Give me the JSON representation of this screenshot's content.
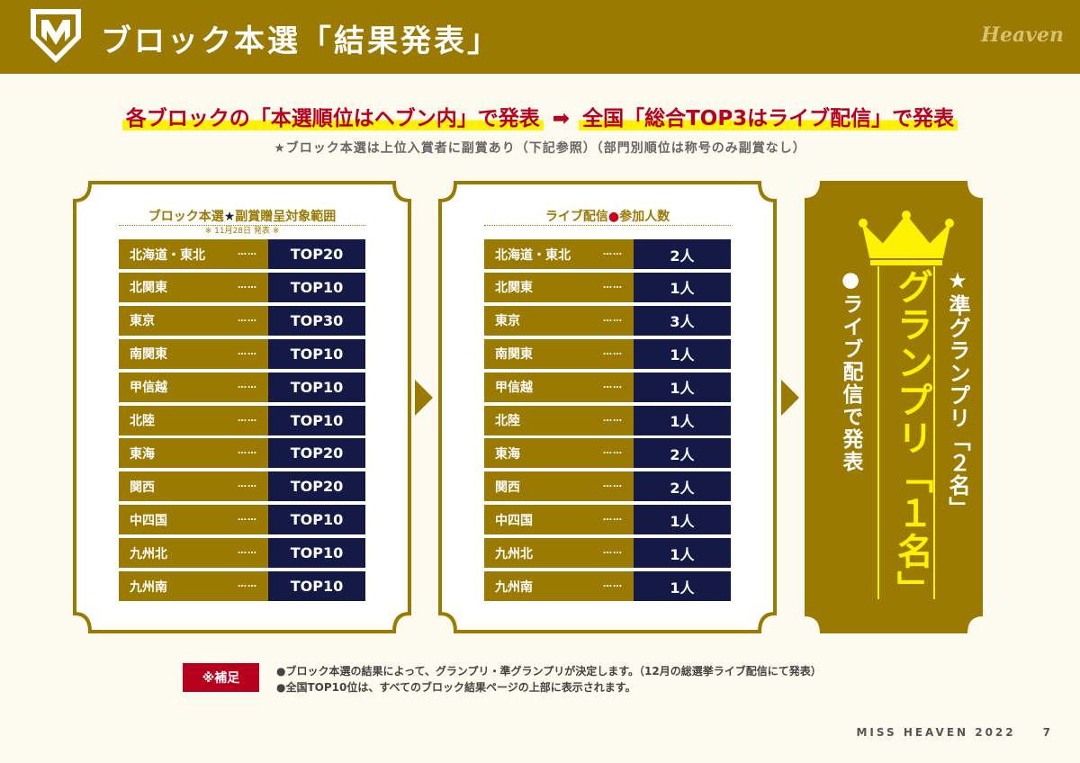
{
  "header": {
    "title": "ブロック本選「結果発表」",
    "brand": "Heaven",
    "logo_icon": "shield-m-logo",
    "bg_color": "#9a7a00"
  },
  "headline": {
    "part1": "各ブロックの「本選順位はヘブン内」で発表",
    "arrow": "➡",
    "part2": "全国「総合TOP3はライブ配信」で発表",
    "note": "★ブロック本選は上位入賞者に副賞あり（下記参照）（部門別順位は称号のみ副賞なし）"
  },
  "panel1": {
    "title_a": "ブロック本選",
    "title_mark": "★",
    "title_b": "副賞贈呈対象範囲",
    "note": "※ 11月28日 発表 ※",
    "rows": [
      {
        "region": "北海道・東北",
        "value": "TOP20"
      },
      {
        "region": "北関東",
        "value": "TOP10"
      },
      {
        "region": "東京",
        "value": "TOP30"
      },
      {
        "region": "南関東",
        "value": "TOP10"
      },
      {
        "region": "甲信越",
        "value": "TOP10"
      },
      {
        "region": "北陸",
        "value": "TOP10"
      },
      {
        "region": "東海",
        "value": "TOP20"
      },
      {
        "region": "関西",
        "value": "TOP20"
      },
      {
        "region": "中四国",
        "value": "TOP10"
      },
      {
        "region": "九州北",
        "value": "TOP10"
      },
      {
        "region": "九州南",
        "value": "TOP10"
      }
    ]
  },
  "panel2": {
    "title_a": "ライブ配信",
    "title_mark": "●",
    "title_b": "参加人数",
    "rows": [
      {
        "region": "北海道・東北",
        "value": "2人"
      },
      {
        "region": "北関東",
        "value": "1人"
      },
      {
        "region": "東京",
        "value": "3人"
      },
      {
        "region": "南関東",
        "value": "1人"
      },
      {
        "region": "甲信越",
        "value": "1人"
      },
      {
        "region": "北陸",
        "value": "1人"
      },
      {
        "region": "東海",
        "value": "2人"
      },
      {
        "region": "関西",
        "value": "2人"
      },
      {
        "region": "中四国",
        "value": "1人"
      },
      {
        "region": "九州北",
        "value": "1人"
      },
      {
        "region": "九州南",
        "value": "1人"
      }
    ]
  },
  "panel3": {
    "crown_icon": "crown-icon",
    "semi_grandprix": "★準グランプリ「２名」",
    "grandprix": "グランプリ「１名」",
    "live_text": "●ライブ配信で発表"
  },
  "footer": {
    "tag": "※補足",
    "note1": "●ブロック本選の結果によって、グランプリ・準グランプリが決定します。（12月の総選挙ライブ配信にて発表）",
    "note2": "●全国TOP10位は、すべてのブロック結果ページの上部に表示されます。",
    "brand": "MISS HEAVEN 2022",
    "page": "7"
  }
}
